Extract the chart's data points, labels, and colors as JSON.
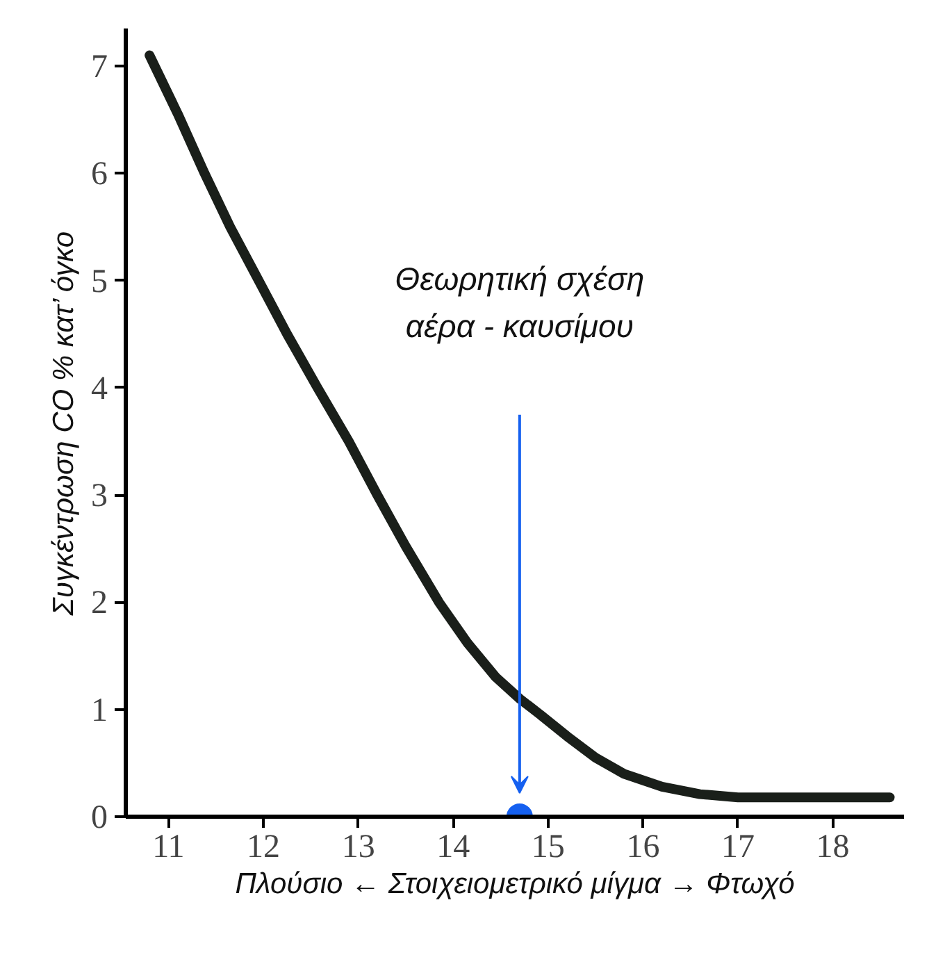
{
  "chart_data": {
    "type": "line",
    "xlabel": "Πλούσιο ← Στοιχειομετρικό μίγμα → Φτωχό",
    "ylabel": "Συγκέντρωση CO % κατ’ όγκο",
    "xlim": [
      10.55,
      18.75
    ],
    "ylim": [
      0,
      7.35
    ],
    "xticks": [
      11,
      12,
      13,
      14,
      15,
      16,
      17,
      18
    ],
    "yticks": [
      0,
      1,
      2,
      3,
      4,
      5,
      6,
      7
    ],
    "grid": false,
    "series": [
      {
        "color": "#1a1f1a",
        "x": [
          10.8,
          11.1,
          11.38,
          11.65,
          11.95,
          12.25,
          12.57,
          12.9,
          13.2,
          13.5,
          13.85,
          14.15,
          14.45,
          14.7,
          14.92,
          15.2,
          15.5,
          15.8,
          16.2,
          16.6,
          17.0,
          17.5,
          18.0,
          18.6
        ],
        "values": [
          7.1,
          6.55,
          6.0,
          5.5,
          5.0,
          4.5,
          4.0,
          3.5,
          3.0,
          2.52,
          2.0,
          1.62,
          1.3,
          1.1,
          0.95,
          0.75,
          0.55,
          0.4,
          0.28,
          0.21,
          0.18,
          0.18,
          0.18,
          0.18
        ]
      },
      {
        "type": "scatter",
        "color": "#1560f0",
        "x": [
          14.7
        ],
        "values": [
          0
        ]
      }
    ],
    "annotations": [
      "Θεωρητική σχέση\nαέρα - καυσίμου"
    ]
  }
}
